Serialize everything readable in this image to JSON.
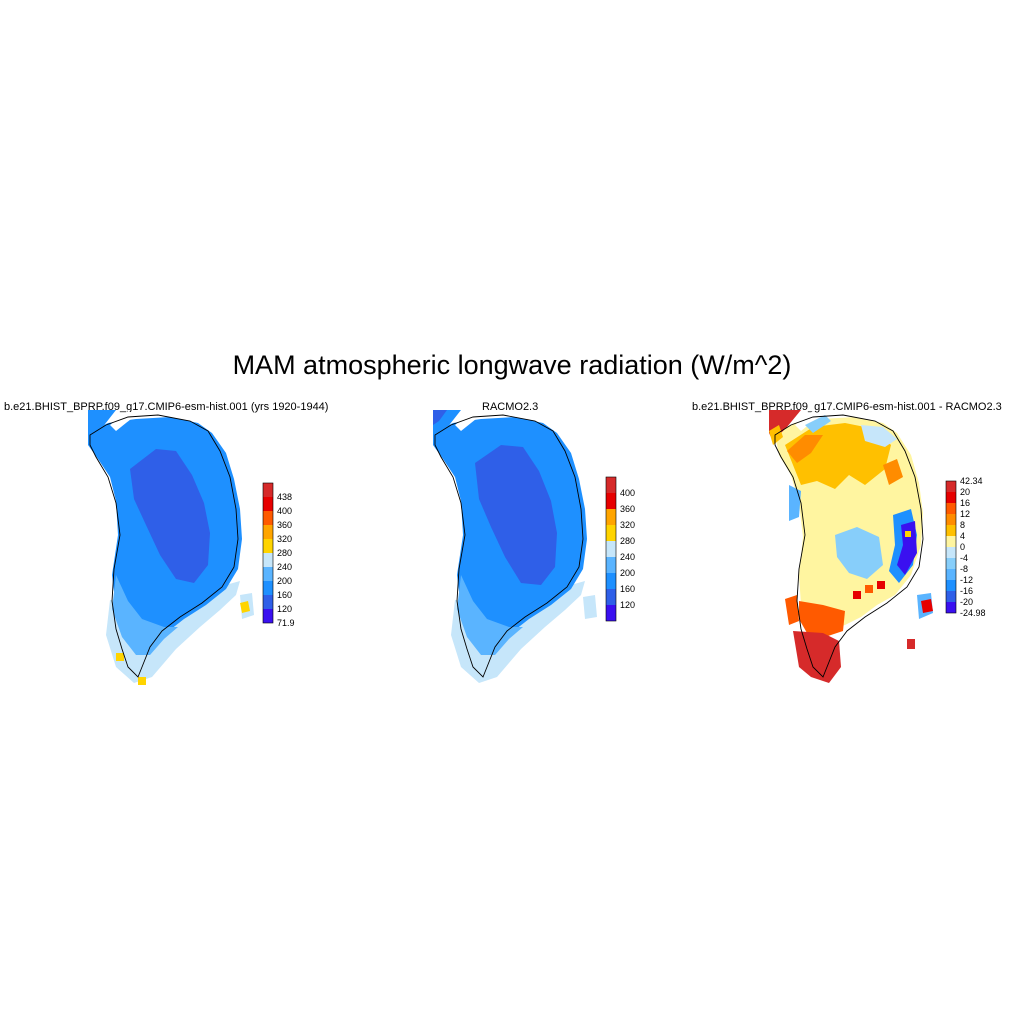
{
  "title": "MAM atmospheric longwave radiation (W/m^2)",
  "panels": [
    {
      "title": "b.e21.BHIST_BPRP.f09_g17.CMIP6-esm-hist.001 (yrs 1920-1944)",
      "colorbar": {
        "labels": [
          "438",
          "400",
          "360",
          "320",
          "280",
          "240",
          "200",
          "160",
          "120",
          "71.9"
        ],
        "colors": [
          "#d62a2a",
          "#e60000",
          "#ff5a00",
          "#ffa500",
          "#ffd400",
          "#c6e6fa",
          "#5ab4ff",
          "#1e90ff",
          "#2f5fe8",
          "#3a10f0"
        ]
      }
    },
    {
      "title": "RACMO2.3",
      "colorbar": {
        "labels": [
          "400",
          "360",
          "320",
          "280",
          "240",
          "200",
          "160",
          "120"
        ],
        "colors": [
          "#d62a2a",
          "#e60000",
          "#ffa500",
          "#ffd400",
          "#c6e6fa",
          "#5ab4ff",
          "#1e90ff",
          "#2f5fe8",
          "#3a10f0"
        ]
      }
    },
    {
      "title": "b.e21.BHIST_BPRP.f09_g17.CMIP6-esm-hist.001 - RACMO2.3",
      "colorbar": {
        "labels": [
          "42.34",
          "20",
          "16",
          "12",
          "8",
          "4",
          "0",
          "-4",
          "-8",
          "-12",
          "-16",
          "-20",
          "-24.98"
        ],
        "colors": [
          "#d62a2a",
          "#e60000",
          "#ff5a00",
          "#ff8c00",
          "#ffc000",
          "#fff5a0",
          "#c6e6fa",
          "#87cefa",
          "#5ab4ff",
          "#1e90ff",
          "#2f5fe8",
          "#3a10f0"
        ]
      }
    }
  ]
}
